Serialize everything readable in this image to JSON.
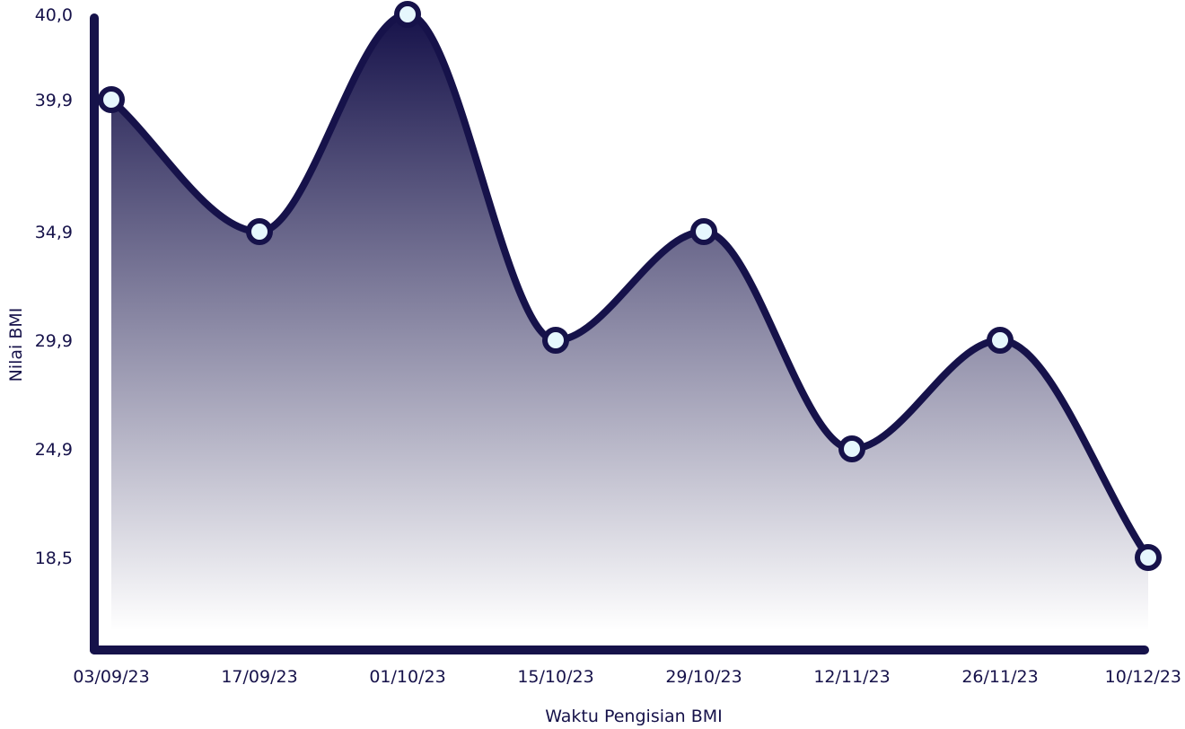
{
  "chart_data": {
    "type": "area",
    "title": "",
    "xlabel": "Waktu Pengisian BMI",
    "ylabel": "Nilai BMI",
    "categories": [
      "03/09/23",
      "17/09/23",
      "01/10/23",
      "15/10/23",
      "29/10/23",
      "12/11/23",
      "26/11/23",
      "10/12/23"
    ],
    "values": [
      39.9,
      34.9,
      40.0,
      29.9,
      34.9,
      24.9,
      29.9,
      18.5
    ],
    "yticks": [
      "40,0",
      "39,9",
      "34,9",
      "29,9",
      "24,9",
      "18,5"
    ],
    "grid": false,
    "legend": "none",
    "colors": {
      "line": "#16124a",
      "fill_top": "#16124a",
      "fill_bottom": "#ffffff",
      "marker_fill": "#e6f7fd",
      "text": "#16124a"
    }
  }
}
